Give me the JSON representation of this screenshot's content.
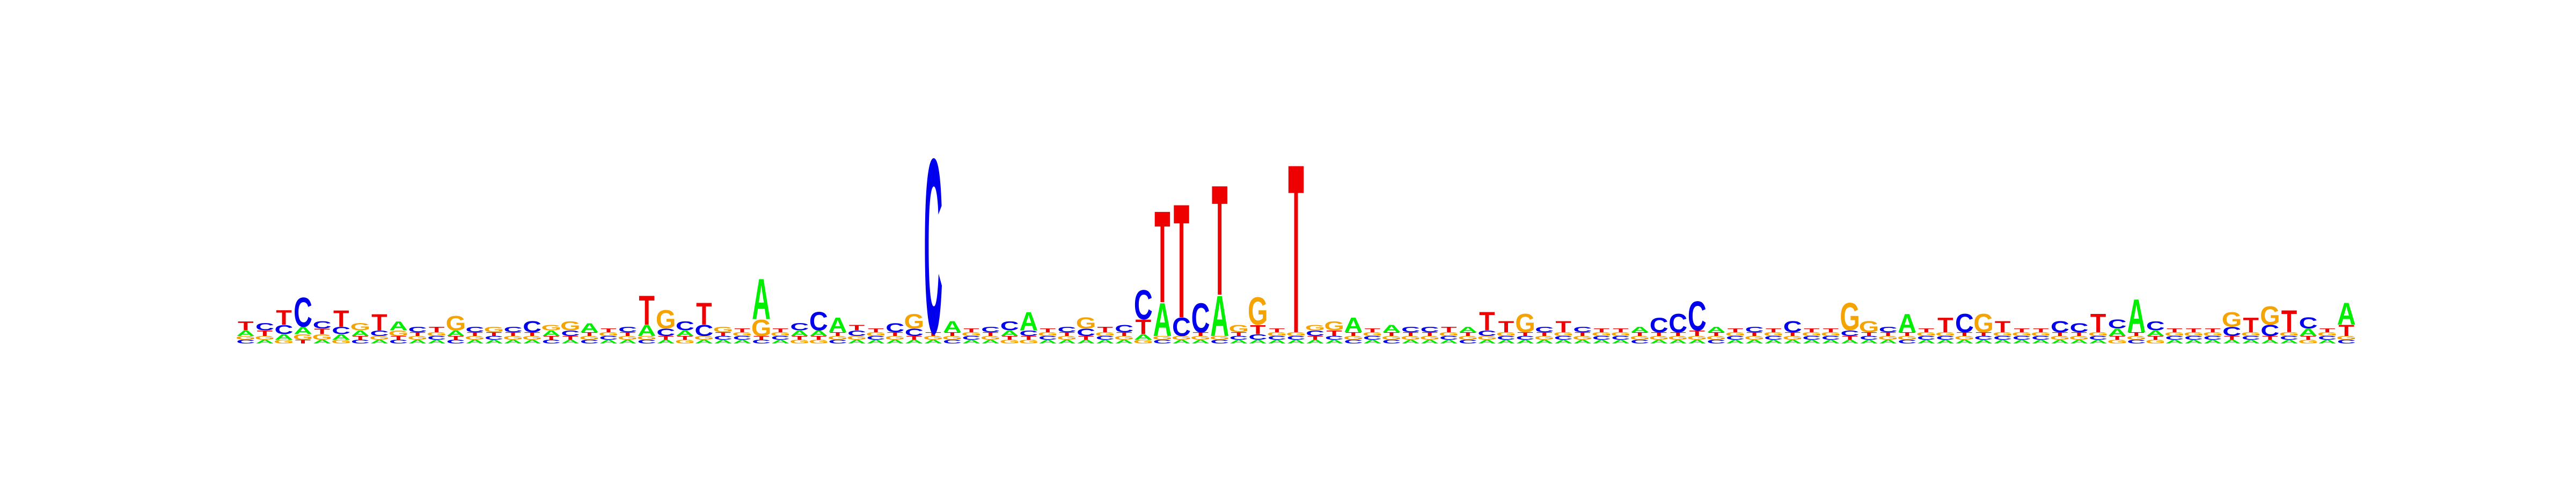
{
  "chart_data": {
    "type": "sequence-logo",
    "title": "",
    "xlabel": "",
    "ylabel": "",
    "alphabet": [
      "A",
      "C",
      "G",
      "T"
    ],
    "colors": {
      "A": "#00ee00",
      "C": "#0000ee",
      "G": "#f5a300",
      "T": "#ee0000"
    },
    "ylim": [
      0,
      2
    ],
    "positions": [
      {
        "A": 0.03,
        "C": 0.02,
        "G": 0.02,
        "T": 0.05
      },
      {
        "A": 0.02,
        "C": 0.04,
        "G": 0.02,
        "T": 0.03
      },
      {
        "A": 0.03,
        "C": 0.05,
        "G": 0.02,
        "T": 0.08
      },
      {
        "A": 0.04,
        "C": 0.16,
        "G": 0.03,
        "T": 0.02
      },
      {
        "A": 0.02,
        "C": 0.04,
        "G": 0.03,
        "T": 0.03
      },
      {
        "A": 0.03,
        "C": 0.04,
        "G": 0.02,
        "T": 0.09
      },
      {
        "A": 0.03,
        "C": 0.02,
        "G": 0.04,
        "T": 0.02
      },
      {
        "A": 0.02,
        "C": 0.03,
        "G": 0.02,
        "T": 0.09
      },
      {
        "A": 0.05,
        "C": 0.02,
        "G": 0.03,
        "T": 0.02
      },
      {
        "A": 0.02,
        "C": 0.03,
        "G": 0.02,
        "T": 0.02
      },
      {
        "A": 0.02,
        "C": 0.02,
        "G": 0.02,
        "T": 0.03
      },
      {
        "A": 0.03,
        "C": 0.02,
        "G": 0.08,
        "T": 0.02
      },
      {
        "A": 0.02,
        "C": 0.03,
        "G": 0.02,
        "T": 0.02
      },
      {
        "A": 0.02,
        "C": 0.02,
        "G": 0.03,
        "T": 0.02
      },
      {
        "A": 0.02,
        "C": 0.03,
        "G": 0.02,
        "T": 0.02
      },
      {
        "A": 0.02,
        "C": 0.06,
        "G": 0.02,
        "T": 0.02
      },
      {
        "A": 0.03,
        "C": 0.02,
        "G": 0.03,
        "T": 0.02
      },
      {
        "A": 0.02,
        "C": 0.03,
        "G": 0.05,
        "T": 0.02
      },
      {
        "A": 0.05,
        "C": 0.02,
        "G": 0.02,
        "T": 0.02
      },
      {
        "A": 0.02,
        "C": 0.02,
        "G": 0.02,
        "T": 0.02
      },
      {
        "A": 0.02,
        "C": 0.03,
        "G": 0.02,
        "T": 0.02
      },
      {
        "A": 0.06,
        "C": 0.02,
        "G": 0.02,
        "T": 0.16
      },
      {
        "A": 0.02,
        "C": 0.04,
        "G": 0.1,
        "T": 0.02
      },
      {
        "A": 0.03,
        "C": 0.05,
        "G": 0.02,
        "T": 0.02
      },
      {
        "A": 0.02,
        "C": 0.06,
        "G": 0.02,
        "T": 0.12
      },
      {
        "A": 0.02,
        "C": 0.02,
        "G": 0.03,
        "T": 0.02
      },
      {
        "A": 0.02,
        "C": 0.02,
        "G": 0.02,
        "T": 0.02
      },
      {
        "A": 0.22,
        "C": 0.02,
        "G": 0.09,
        "T": 0.02
      },
      {
        "A": 0.02,
        "C": 0.02,
        "G": 0.02,
        "T": 0.02
      },
      {
        "A": 0.03,
        "C": 0.04,
        "G": 0.02,
        "T": 0.02
      },
      {
        "A": 0.03,
        "C": 0.1,
        "G": 0.02,
        "T": 0.02
      },
      {
        "A": 0.08,
        "C": 0.02,
        "G": 0.02,
        "T": 0.02
      },
      {
        "A": 0.02,
        "C": 0.03,
        "G": 0.02,
        "T": 0.03
      },
      {
        "A": 0.02,
        "C": 0.02,
        "G": 0.02,
        "T": 0.02
      },
      {
        "A": 0.02,
        "C": 0.05,
        "G": 0.02,
        "T": 0.02
      },
      {
        "A": 0.02,
        "C": 0.04,
        "G": 0.08,
        "T": 0.02
      },
      {
        "A": 0.02,
        "C": 0.95,
        "G": 0.02,
        "T": 0.02
      },
      {
        "A": 0.06,
        "C": 0.02,
        "G": 0.02,
        "T": 0.02
      },
      {
        "A": 0.02,
        "C": 0.02,
        "G": 0.02,
        "T": 0.02
      },
      {
        "A": 0.02,
        "C": 0.03,
        "G": 0.02,
        "T": 0.02
      },
      {
        "A": 0.03,
        "C": 0.05,
        "G": 0.02,
        "T": 0.02
      },
      {
        "A": 0.1,
        "C": 0.03,
        "G": 0.02,
        "T": 0.02
      },
      {
        "A": 0.02,
        "C": 0.02,
        "G": 0.02,
        "T": 0.02
      },
      {
        "A": 0.02,
        "C": 0.03,
        "G": 0.02,
        "T": 0.02
      },
      {
        "A": 0.02,
        "C": 0.04,
        "G": 0.06,
        "T": 0.02
      },
      {
        "A": 0.02,
        "C": 0.02,
        "G": 0.02,
        "T": 0.03
      },
      {
        "A": 0.02,
        "C": 0.04,
        "G": 0.02,
        "T": 0.02
      },
      {
        "A": 0.03,
        "C": 0.16,
        "G": 0.02,
        "T": 0.08
      },
      {
        "A": 0.18,
        "C": 0.02,
        "G": 0.02,
        "T": 0.5
      },
      {
        "A": 0.02,
        "C": 0.1,
        "G": 0.02,
        "T": 0.62
      },
      {
        "A": 0.02,
        "C": 0.16,
        "G": 0.02,
        "T": 0.02
      },
      {
        "A": 0.22,
        "C": 0.02,
        "G": 0.02,
        "T": 0.6
      },
      {
        "A": 0.02,
        "C": 0.02,
        "G": 0.04,
        "T": 0.02
      },
      {
        "A": 0.02,
        "C": 0.03,
        "G": 0.15,
        "T": 0.05
      },
      {
        "A": 0.02,
        "C": 0.02,
        "G": 0.02,
        "T": 0.02
      },
      {
        "A": 0.02,
        "C": 0.02,
        "G": 0.02,
        "T": 0.92
      },
      {
        "A": 0.02,
        "C": 0.03,
        "G": 0.03,
        "T": 0.02
      },
      {
        "A": 0.02,
        "C": 0.02,
        "G": 0.05,
        "T": 0.03
      },
      {
        "A": 0.08,
        "C": 0.02,
        "G": 0.02,
        "T": 0.02
      },
      {
        "A": 0.02,
        "C": 0.02,
        "G": 0.02,
        "T": 0.02
      },
      {
        "A": 0.04,
        "C": 0.02,
        "G": 0.02,
        "T": 0.02
      },
      {
        "A": 0.02,
        "C": 0.03,
        "G": 0.02,
        "T": 0.02
      },
      {
        "A": 0.02,
        "C": 0.03,
        "G": 0.02,
        "T": 0.02
      },
      {
        "A": 0.02,
        "C": 0.02,
        "G": 0.02,
        "T": 0.03
      },
      {
        "A": 0.03,
        "C": 0.02,
        "G": 0.02,
        "T": 0.02
      },
      {
        "A": 0.02,
        "C": 0.03,
        "G": 0.02,
        "T": 0.1
      },
      {
        "A": 0.02,
        "C": 0.02,
        "G": 0.02,
        "T": 0.06
      },
      {
        "A": 0.02,
        "C": 0.02,
        "G": 0.1,
        "T": 0.02
      },
      {
        "A": 0.02,
        "C": 0.03,
        "G": 0.02,
        "T": 0.02
      },
      {
        "A": 0.02,
        "C": 0.02,
        "G": 0.02,
        "T": 0.06
      },
      {
        "A": 0.02,
        "C": 0.03,
        "G": 0.02,
        "T": 0.02
      },
      {
        "A": 0.02,
        "C": 0.02,
        "G": 0.02,
        "T": 0.02
      },
      {
        "A": 0.02,
        "C": 0.02,
        "G": 0.02,
        "T": 0.02
      },
      {
        "A": 0.03,
        "C": 0.02,
        "G": 0.02,
        "T": 0.02
      },
      {
        "A": 0.02,
        "C": 0.08,
        "G": 0.02,
        "T": 0.02
      },
      {
        "A": 0.02,
        "C": 0.1,
        "G": 0.02,
        "T": 0.02
      },
      {
        "A": 0.02,
        "C": 0.16,
        "G": 0.02,
        "T": 0.03
      },
      {
        "A": 0.03,
        "C": 0.02,
        "G": 0.02,
        "T": 0.02
      },
      {
        "A": 0.02,
        "C": 0.02,
        "G": 0.02,
        "T": 0.02
      },
      {
        "A": 0.02,
        "C": 0.03,
        "G": 0.02,
        "T": 0.02
      },
      {
        "A": 0.02,
        "C": 0.02,
        "G": 0.02,
        "T": 0.02
      },
      {
        "A": 0.02,
        "C": 0.06,
        "G": 0.02,
        "T": 0.02
      },
      {
        "A": 0.02,
        "C": 0.02,
        "G": 0.02,
        "T": 0.02
      },
      {
        "A": 0.02,
        "C": 0.02,
        "G": 0.02,
        "T": 0.02
      },
      {
        "A": 0.02,
        "C": 0.03,
        "G": 0.15,
        "T": 0.02
      },
      {
        "A": 0.02,
        "C": 0.02,
        "G": 0.06,
        "T": 0.02
      },
      {
        "A": 0.02,
        "C": 0.03,
        "G": 0.02,
        "T": 0.02
      },
      {
        "A": 0.1,
        "C": 0.02,
        "G": 0.02,
        "T": 0.02
      },
      {
        "A": 0.02,
        "C": 0.02,
        "G": 0.02,
        "T": 0.02
      },
      {
        "A": 0.02,
        "C": 0.02,
        "G": 0.02,
        "T": 0.08
      },
      {
        "A": 0.02,
        "C": 0.1,
        "G": 0.02,
        "T": 0.02
      },
      {
        "A": 0.02,
        "C": 0.02,
        "G": 0.1,
        "T": 0.02
      },
      {
        "A": 0.02,
        "C": 0.02,
        "G": 0.02,
        "T": 0.06
      },
      {
        "A": 0.02,
        "C": 0.02,
        "G": 0.02,
        "T": 0.02
      },
      {
        "A": 0.02,
        "C": 0.02,
        "G": 0.02,
        "T": 0.02
      },
      {
        "A": 0.02,
        "C": 0.06,
        "G": 0.02,
        "T": 0.02
      },
      {
        "A": 0.02,
        "C": 0.05,
        "G": 0.02,
        "T": 0.02
      },
      {
        "A": 0.02,
        "C": 0.02,
        "G": 0.02,
        "T": 0.1
      },
      {
        "A": 0.04,
        "C": 0.05,
        "G": 0.02,
        "T": 0.02
      },
      {
        "A": 0.18,
        "C": 0.02,
        "G": 0.02,
        "T": 0.02
      },
      {
        "A": 0.03,
        "C": 0.05,
        "G": 0.02,
        "T": 0.02
      },
      {
        "A": 0.02,
        "C": 0.02,
        "G": 0.02,
        "T": 0.02
      },
      {
        "A": 0.02,
        "C": 0.02,
        "G": 0.02,
        "T": 0.02
      },
      {
        "A": 0.02,
        "C": 0.02,
        "G": 0.02,
        "T": 0.02
      },
      {
        "A": 0.02,
        "C": 0.05,
        "G": 0.08,
        "T": 0.02
      },
      {
        "A": 0.02,
        "C": 0.02,
        "G": 0.02,
        "T": 0.08
      },
      {
        "A": 0.02,
        "C": 0.06,
        "G": 0.1,
        "T": 0.02
      },
      {
        "A": 0.02,
        "C": 0.02,
        "G": 0.02,
        "T": 0.12
      },
      {
        "A": 0.04,
        "C": 0.06,
        "G": 0.02,
        "T": 0.02
      },
      {
        "A": 0.02,
        "C": 0.02,
        "G": 0.02,
        "T": 0.02
      },
      {
        "A": 0.12,
        "C": 0.02,
        "G": 0.02,
        "T": 0.06
      }
    ]
  }
}
